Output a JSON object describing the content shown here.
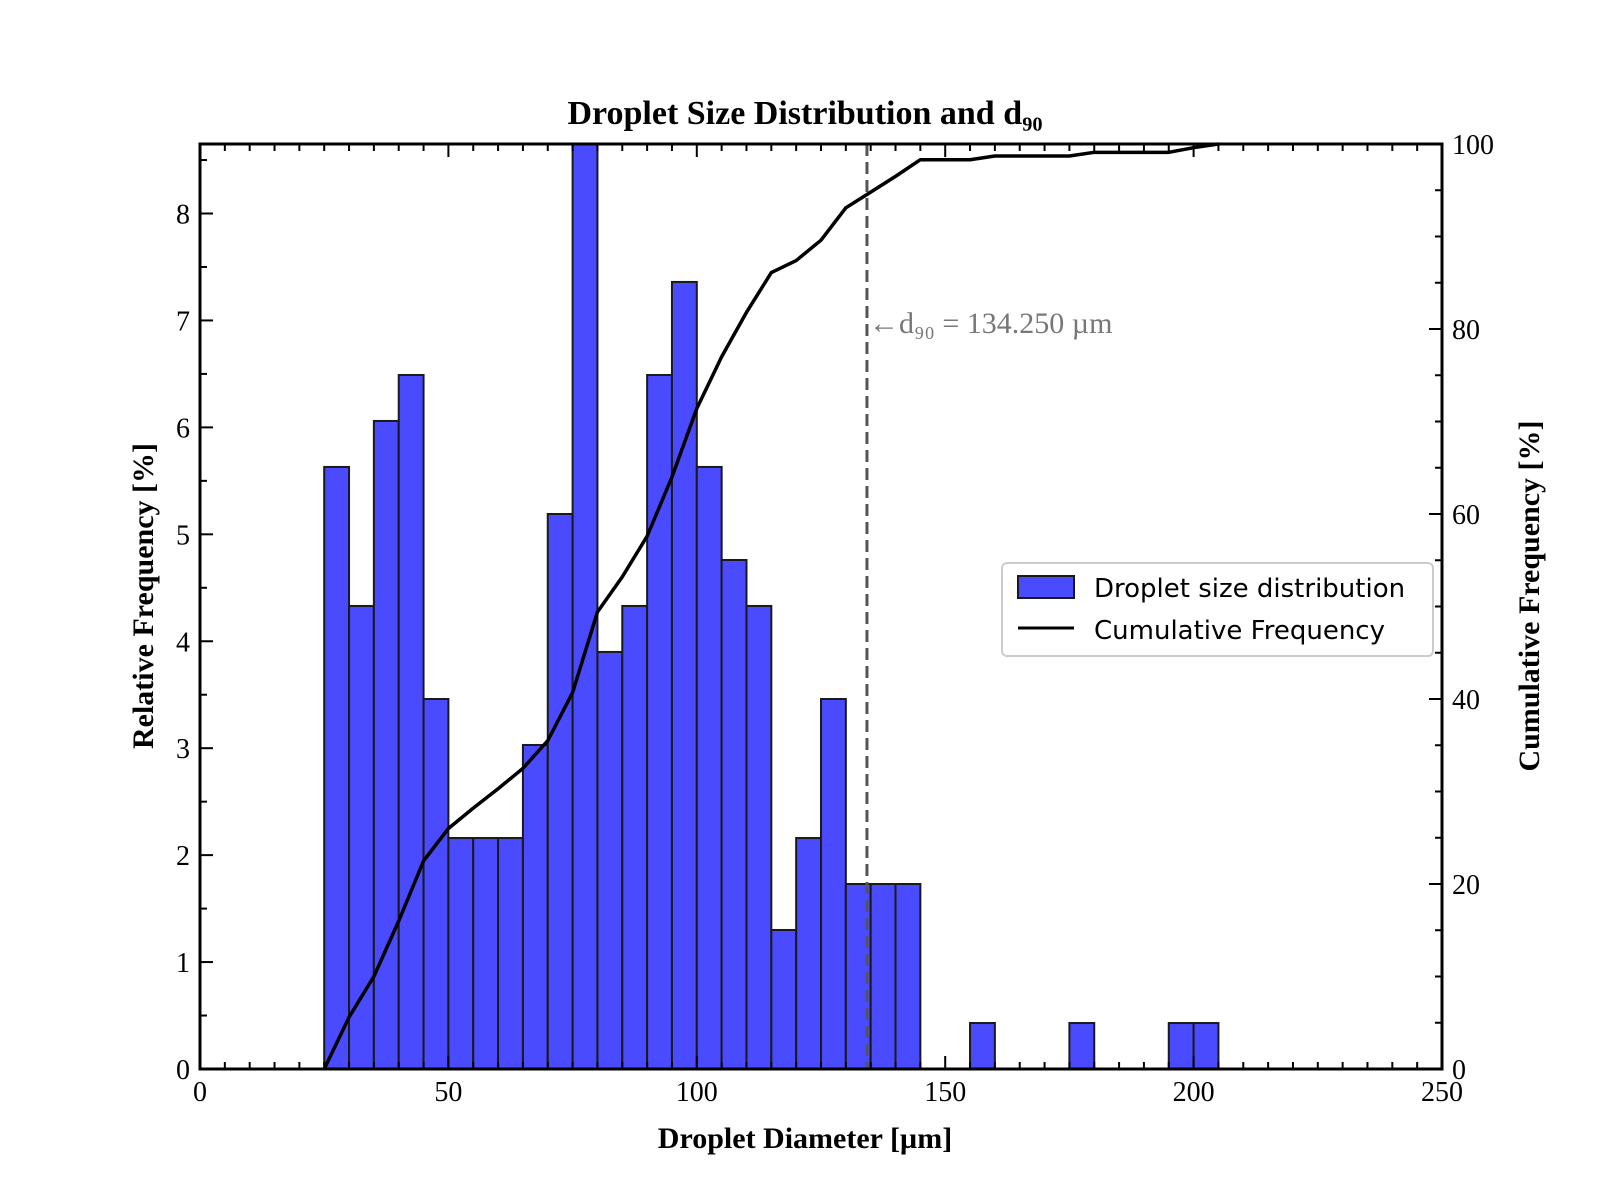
{
  "chart_data": {
    "type": "bar",
    "title": "Droplet Size Distribution and d₉₀",
    "xlabel": "Droplet Diameter [µm]",
    "ylabel": "Relative Frequency [%]",
    "y2label": "Cumulative Frequency [%]",
    "xlim": [
      0,
      250
    ],
    "ylim": [
      0,
      8.65
    ],
    "y2lim": [
      0,
      100
    ],
    "x_ticks": [
      0,
      50,
      100,
      150,
      200,
      250
    ],
    "y_ticks": [
      0,
      1,
      2,
      3,
      4,
      5,
      6,
      7,
      8
    ],
    "y2_ticks": [
      0,
      20,
      40,
      60,
      80,
      100
    ],
    "grid": false,
    "legend_position": "right",
    "bin_width": 5,
    "bins": [
      {
        "start": 25,
        "value": 5.63
      },
      {
        "start": 30,
        "value": 4.33
      },
      {
        "start": 35,
        "value": 6.06
      },
      {
        "start": 40,
        "value": 6.49
      },
      {
        "start": 45,
        "value": 3.46
      },
      {
        "start": 50,
        "value": 2.16
      },
      {
        "start": 55,
        "value": 2.16
      },
      {
        "start": 60,
        "value": 2.16
      },
      {
        "start": 65,
        "value": 3.03
      },
      {
        "start": 70,
        "value": 5.19
      },
      {
        "start": 75,
        "value": 8.66
      },
      {
        "start": 80,
        "value": 3.9
      },
      {
        "start": 85,
        "value": 4.33
      },
      {
        "start": 90,
        "value": 6.49
      },
      {
        "start": 95,
        "value": 7.36
      },
      {
        "start": 100,
        "value": 5.63
      },
      {
        "start": 105,
        "value": 4.76
      },
      {
        "start": 110,
        "value": 4.33
      },
      {
        "start": 115,
        "value": 1.3
      },
      {
        "start": 120,
        "value": 2.16
      },
      {
        "start": 125,
        "value": 3.46
      },
      {
        "start": 130,
        "value": 1.73
      },
      {
        "start": 135,
        "value": 1.73
      },
      {
        "start": 140,
        "value": 1.73
      },
      {
        "start": 155,
        "value": 0.43
      },
      {
        "start": 175,
        "value": 0.43
      },
      {
        "start": 195,
        "value": 0.43
      },
      {
        "start": 200,
        "value": 0.43
      }
    ],
    "cumulative": {
      "x": [
        25,
        30,
        35,
        40,
        45,
        50,
        55,
        60,
        65,
        70,
        75,
        80,
        85,
        90,
        95,
        100,
        105,
        110,
        115,
        120,
        125,
        130,
        135,
        140,
        145,
        150,
        155,
        160,
        165,
        170,
        175,
        180,
        185,
        190,
        195,
        200,
        205
      ],
      "y": [
        0,
        5.6,
        10.0,
        16.0,
        22.5,
        26.0,
        28.2,
        30.3,
        32.5,
        35.5,
        40.7,
        49.4,
        53.2,
        57.6,
        64.0,
        71.4,
        77.0,
        81.8,
        86.1,
        87.4,
        89.6,
        93.1,
        94.8,
        96.5,
        98.3,
        98.3,
        98.3,
        98.7,
        98.7,
        98.7,
        98.7,
        99.1,
        99.1,
        99.1,
        99.1,
        99.6,
        100.0
      ]
    },
    "d90": {
      "value": 134.25,
      "label": "←d₉₀ = 134.250 µm"
    },
    "colors": {
      "bar_fill": "#4a4aff",
      "bar_edge": "#1a1a1a",
      "cumulative_line": "#000000",
      "d90_line": "#555555",
      "annotation": "#777777"
    },
    "series": [
      {
        "name": "Droplet size distribution"
      },
      {
        "name": "Cumulative Frequency"
      }
    ]
  }
}
